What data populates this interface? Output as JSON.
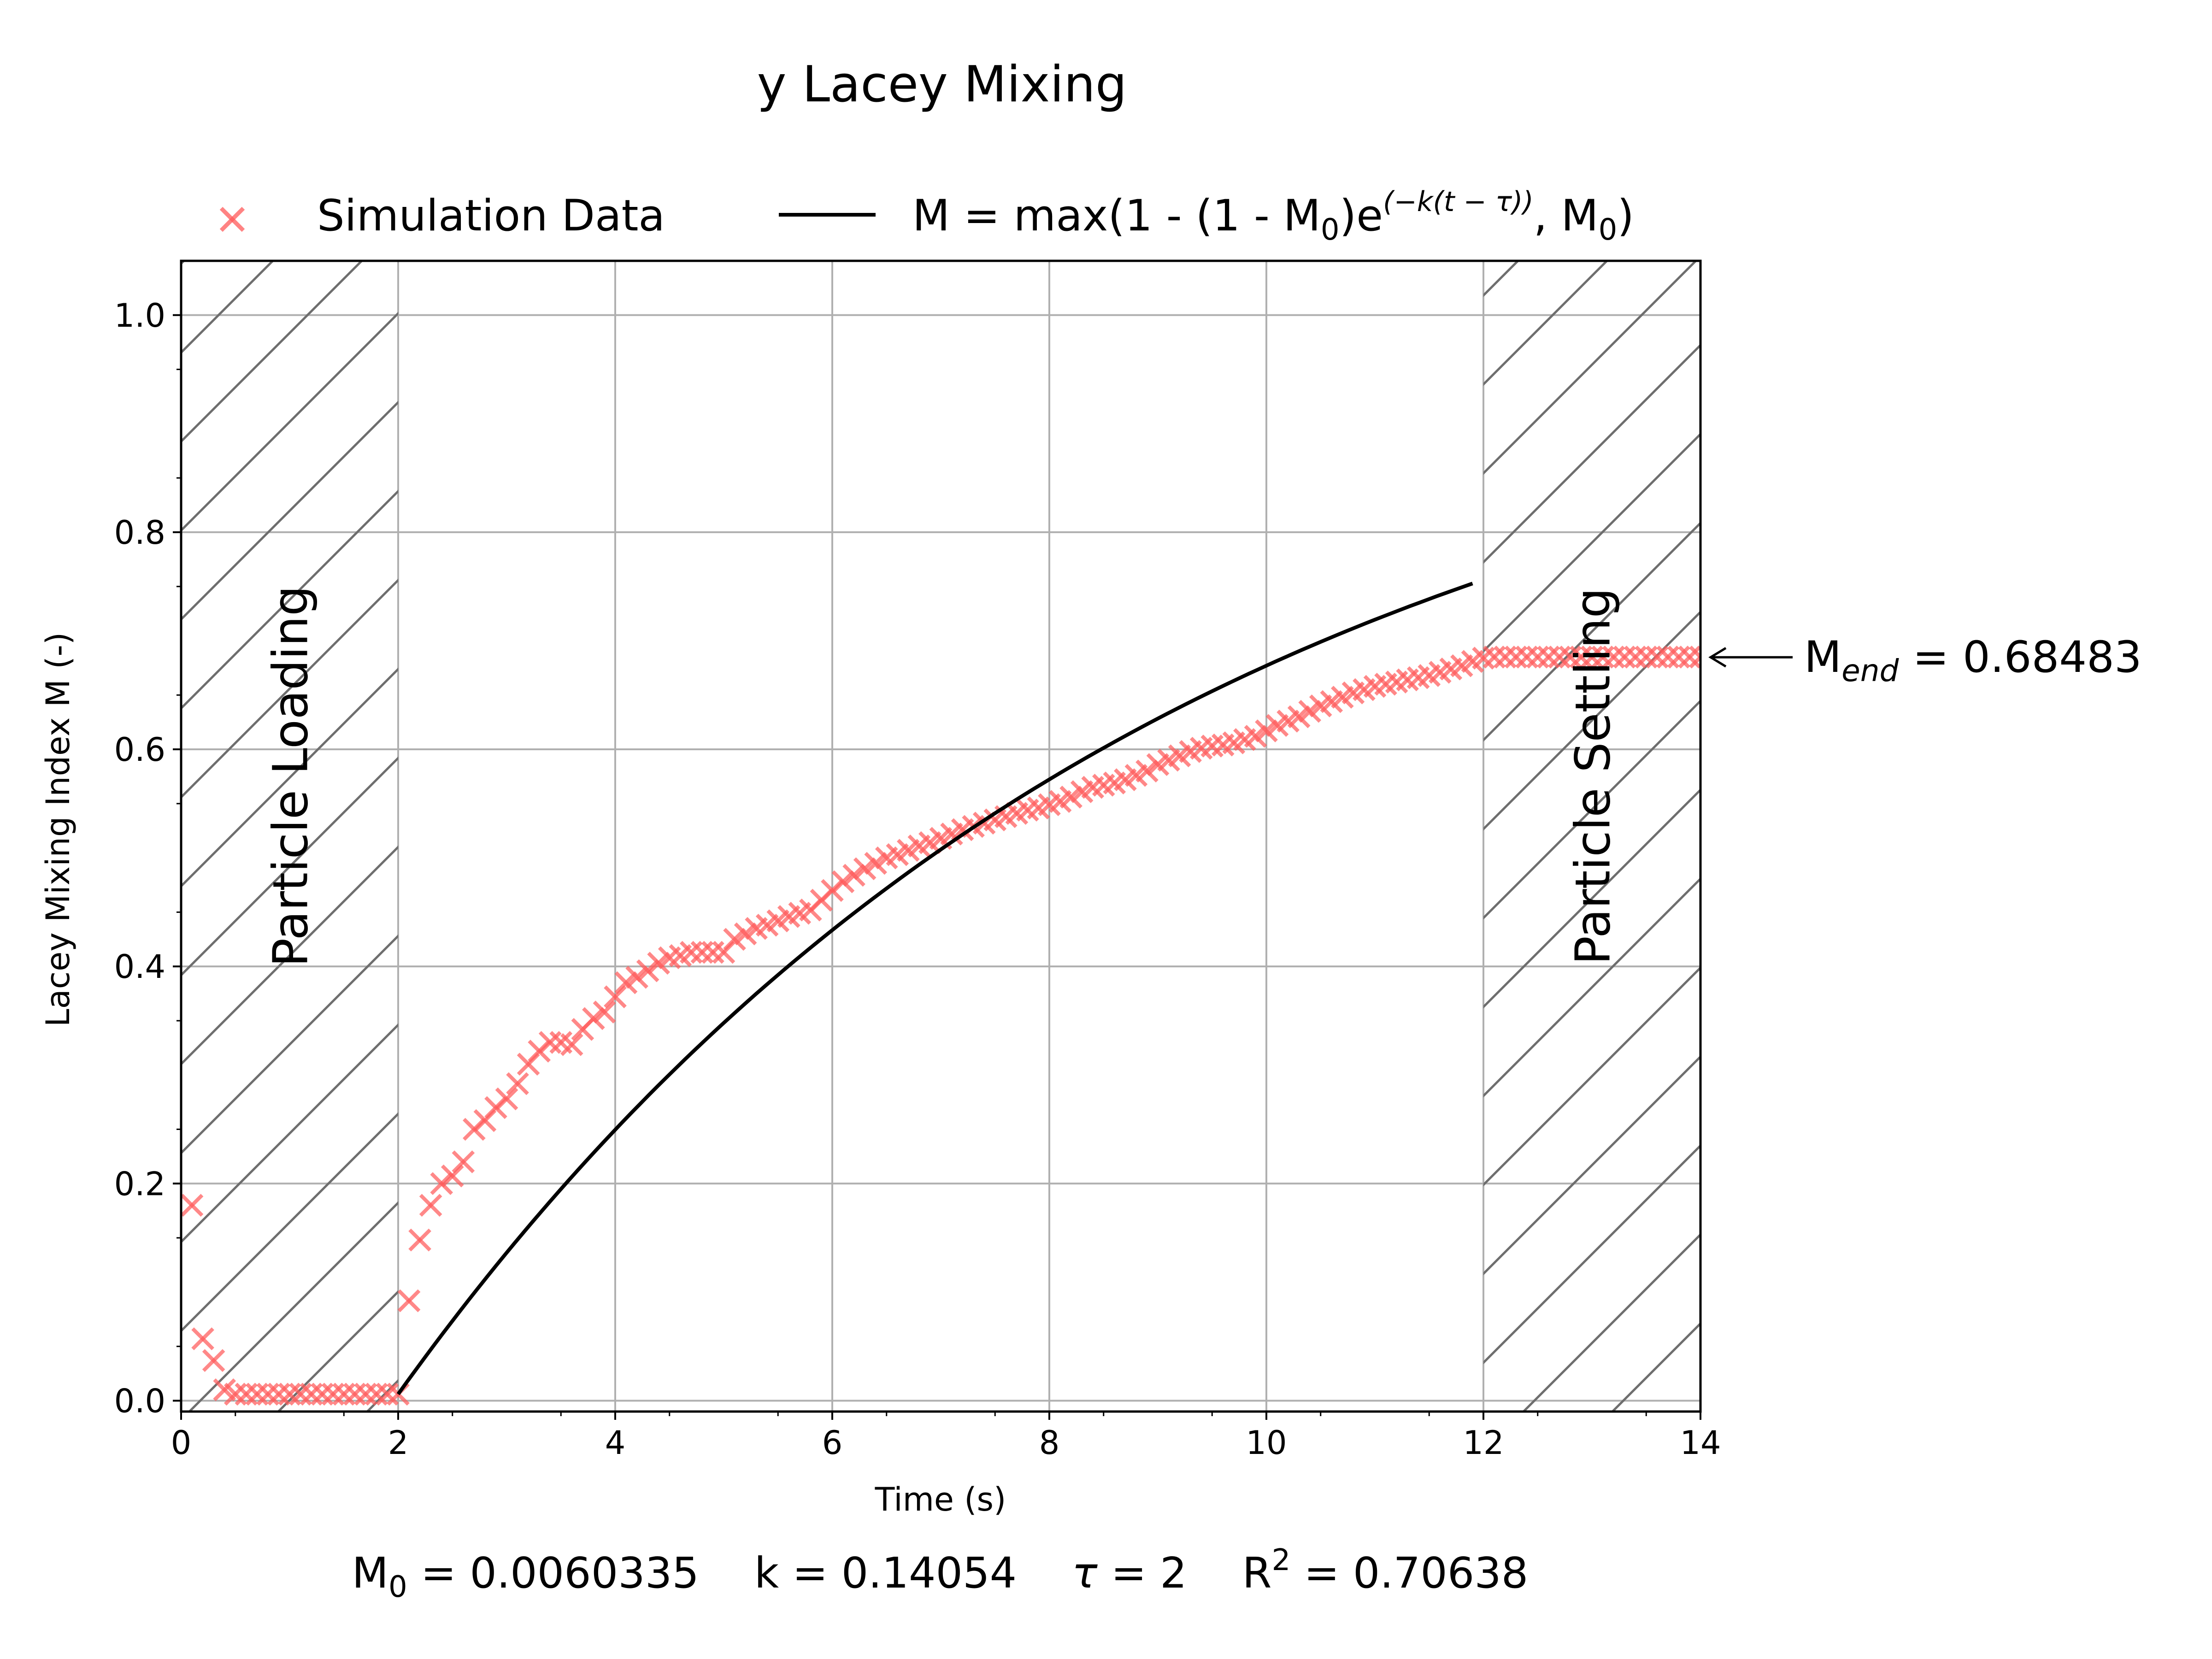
{
  "chart_data": {
    "type": "scatter",
    "title": "y Lacey Mixing",
    "xlabel": "Time (s)",
    "ylabel": "Lacey Mixing Index M (-)",
    "xlim": [
      0,
      14
    ],
    "ylim": [
      -0.01,
      1.05
    ],
    "x_ticks": [
      "0",
      "2",
      "4",
      "6",
      "8",
      "10",
      "12",
      "14"
    ],
    "y_ticks": [
      "0.0",
      "0.2",
      "0.4",
      "0.6",
      "0.8",
      "1.0"
    ],
    "grid": true,
    "legend_position": "top",
    "series": [
      {
        "name": "Simulation Data",
        "kind": "scatter",
        "marker": "x",
        "color": "#ff5a5a",
        "points": [
          [
            0.1,
            0.18
          ],
          [
            0.2,
            0.057
          ],
          [
            0.3,
            0.037
          ],
          [
            0.4,
            0.01
          ],
          [
            0.5,
            0.006
          ],
          [
            0.6,
            0.006
          ],
          [
            0.7,
            0.006
          ],
          [
            0.8,
            0.006
          ],
          [
            0.9,
            0.006
          ],
          [
            1.0,
            0.006
          ],
          [
            1.1,
            0.006
          ],
          [
            1.2,
            0.006
          ],
          [
            1.3,
            0.006
          ],
          [
            1.4,
            0.006
          ],
          [
            1.5,
            0.006
          ],
          [
            1.6,
            0.006
          ],
          [
            1.7,
            0.006
          ],
          [
            1.8,
            0.006
          ],
          [
            1.9,
            0.006
          ],
          [
            2.0,
            0.006
          ],
          [
            2.1,
            0.092
          ],
          [
            2.2,
            0.148
          ],
          [
            2.3,
            0.18
          ],
          [
            2.4,
            0.2
          ],
          [
            2.5,
            0.207
          ],
          [
            2.6,
            0.22
          ],
          [
            2.7,
            0.25
          ],
          [
            2.8,
            0.258
          ],
          [
            2.9,
            0.27
          ],
          [
            3.0,
            0.278
          ],
          [
            3.1,
            0.292
          ],
          [
            3.2,
            0.31
          ],
          [
            3.3,
            0.322
          ],
          [
            3.4,
            0.33
          ],
          [
            3.5,
            0.33
          ],
          [
            3.6,
            0.328
          ],
          [
            3.7,
            0.342
          ],
          [
            3.8,
            0.352
          ],
          [
            3.9,
            0.358
          ],
          [
            4.0,
            0.372
          ],
          [
            4.1,
            0.385
          ],
          [
            4.2,
            0.39
          ],
          [
            4.3,
            0.396
          ],
          [
            4.4,
            0.403
          ],
          [
            4.5,
            0.408
          ],
          [
            4.6,
            0.41
          ],
          [
            4.7,
            0.413
          ],
          [
            4.8,
            0.413
          ],
          [
            4.9,
            0.413
          ],
          [
            5.0,
            0.413
          ],
          [
            5.1,
            0.425
          ],
          [
            5.2,
            0.43
          ],
          [
            5.3,
            0.435
          ],
          [
            5.4,
            0.438
          ],
          [
            5.5,
            0.442
          ],
          [
            5.6,
            0.446
          ],
          [
            5.7,
            0.449
          ],
          [
            5.8,
            0.452
          ],
          [
            5.9,
            0.461
          ],
          [
            6.0,
            0.47
          ],
          [
            6.1,
            0.478
          ],
          [
            6.2,
            0.484
          ],
          [
            6.3,
            0.49
          ],
          [
            6.4,
            0.495
          ],
          [
            6.5,
            0.5
          ],
          [
            6.6,
            0.503
          ],
          [
            6.7,
            0.507
          ],
          [
            6.8,
            0.511
          ],
          [
            6.9,
            0.514
          ],
          [
            7.0,
            0.518
          ],
          [
            7.1,
            0.522
          ],
          [
            7.2,
            0.526
          ],
          [
            7.3,
            0.529
          ],
          [
            7.4,
            0.532
          ],
          [
            7.5,
            0.535
          ],
          [
            7.6,
            0.538
          ],
          [
            7.7,
            0.541
          ],
          [
            7.8,
            0.544
          ],
          [
            7.9,
            0.546
          ],
          [
            8.0,
            0.549
          ],
          [
            8.1,
            0.552
          ],
          [
            8.2,
            0.556
          ],
          [
            8.3,
            0.561
          ],
          [
            8.4,
            0.565
          ],
          [
            8.5,
            0.567
          ],
          [
            8.6,
            0.569
          ],
          [
            8.7,
            0.572
          ],
          [
            8.8,
            0.576
          ],
          [
            8.9,
            0.58
          ],
          [
            9.0,
            0.586
          ],
          [
            9.1,
            0.59
          ],
          [
            9.2,
            0.594
          ],
          [
            9.3,
            0.598
          ],
          [
            9.4,
            0.601
          ],
          [
            9.5,
            0.603
          ],
          [
            9.6,
            0.604
          ],
          [
            9.7,
            0.606
          ],
          [
            9.8,
            0.609
          ],
          [
            9.9,
            0.612
          ],
          [
            10.0,
            0.617
          ],
          [
            10.1,
            0.622
          ],
          [
            10.2,
            0.626
          ],
          [
            10.3,
            0.63
          ],
          [
            10.4,
            0.635
          ],
          [
            10.5,
            0.64
          ],
          [
            10.6,
            0.644
          ],
          [
            10.7,
            0.648
          ],
          [
            10.8,
            0.652
          ],
          [
            10.9,
            0.655
          ],
          [
            11.0,
            0.658
          ],
          [
            11.1,
            0.66
          ],
          [
            11.2,
            0.662
          ],
          [
            11.3,
            0.664
          ],
          [
            11.4,
            0.666
          ],
          [
            11.5,
            0.668
          ],
          [
            11.6,
            0.671
          ],
          [
            11.7,
            0.674
          ],
          [
            11.8,
            0.677
          ],
          [
            11.9,
            0.681
          ],
          [
            12.0,
            0.684
          ],
          [
            12.1,
            0.685
          ],
          [
            12.2,
            0.685
          ],
          [
            12.3,
            0.685
          ],
          [
            12.4,
            0.685
          ],
          [
            12.5,
            0.685
          ],
          [
            12.6,
            0.685
          ],
          [
            12.7,
            0.685
          ],
          [
            12.8,
            0.685
          ],
          [
            12.9,
            0.685
          ],
          [
            13.0,
            0.685
          ],
          [
            13.1,
            0.685
          ],
          [
            13.2,
            0.685
          ],
          [
            13.3,
            0.685
          ],
          [
            13.4,
            0.685
          ],
          [
            13.5,
            0.685
          ],
          [
            13.6,
            0.685
          ],
          [
            13.7,
            0.685
          ],
          [
            13.8,
            0.685
          ],
          [
            13.9,
            0.685
          ],
          [
            14.0,
            0.685
          ]
        ]
      },
      {
        "name": "M = max(1 - (1 - M0)e^(-k(t - τ)), M0)",
        "kind": "line",
        "color": "#000000",
        "function": "max(1 - (1 - M0)*exp(-k*(t - tau)), M0)",
        "t_range": [
          2.0,
          11.9
        ]
      }
    ],
    "legend": {
      "scatter_label": "Simulation Data",
      "line_label_parts": [
        "M = max(1 - (1 - M",
        "0",
        ")e",
        "(−k(t − τ))",
        ", M",
        "0",
        ")"
      ]
    },
    "regions": [
      {
        "label": "Particle Loading",
        "x_start": 0,
        "x_end": 2,
        "hatch": "/"
      },
      {
        "label": "Particle Settling",
        "x_start": 12,
        "x_end": 14,
        "hatch": "/"
      }
    ],
    "end_annotation": {
      "label_prefix": "M",
      "label_sub": "end",
      "label_value": " = 0.68483",
      "y": 0.68483
    },
    "fit": {
      "M0": 0.0060335,
      "k": 0.14054,
      "tau": 2,
      "R2": 0.70638,
      "parts": {
        "m0_prefix": "M",
        "m0_sub": "0",
        "m0_value": " = 0.0060335",
        "k_text": "k = 0.14054",
        "tau_symbol": "τ",
        "tau_value": " = 2",
        "r2_prefix": "R",
        "r2_sup": "2",
        "r2_value": " = 0.70638"
      }
    }
  }
}
